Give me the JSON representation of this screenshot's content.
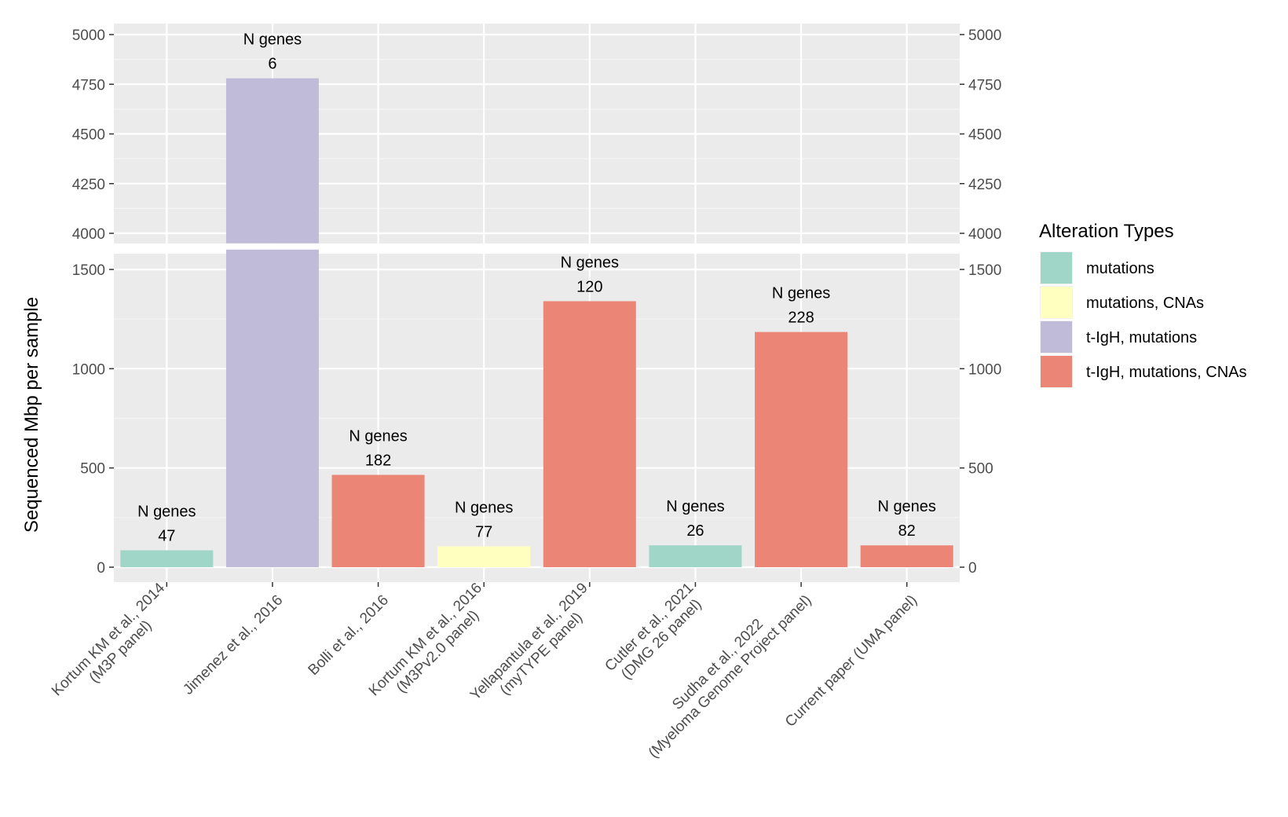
{
  "chart_data": {
    "type": "bar",
    "ylabel": "Sequenced Mbp per sample",
    "xlabel": "",
    "axis_break": {
      "lower_range": [
        0,
        1600
      ],
      "upper_range": [
        3950,
        5000
      ]
    },
    "yticks_lower": [
      "0",
      "500",
      "1000",
      "1500"
    ],
    "yticks_upper": [
      "4000",
      "4250",
      "4500",
      "4750",
      "5000"
    ],
    "categories": [
      [
        "Kortum KM et al., 2014",
        "(M3P panel)"
      ],
      [
        "Jimenez et al., 2016"
      ],
      [
        "Bolli et al., 2016"
      ],
      [
        "Kortum KM et al., 2016",
        "(M3Pv2.0 panel)"
      ],
      [
        "Yellapantula et al., 2019",
        "(myTYPE panel)"
      ],
      [
        "Cutler et al., 2021",
        "(DMG 26 panel)"
      ],
      [
        "Sudha et al., 2022",
        "(Myeloma Genome Project panel)"
      ],
      [
        "Current paper (UMA panel)"
      ]
    ],
    "values": [
      85,
      4780,
      465,
      105,
      1340,
      110,
      1185,
      110
    ],
    "alteration": [
      "mutations",
      "t-IgH, mutations",
      "t-IgH, mutations, CNAs",
      "mutations, CNAs",
      "t-IgH, mutations, CNAs",
      "mutations",
      "t-IgH, mutations, CNAs",
      "t-IgH, mutations, CNAs"
    ],
    "annotation_prefix": "N genes",
    "n_genes": [
      "47",
      "6",
      "182",
      "77",
      "120",
      "26",
      "228",
      "82"
    ],
    "legend": {
      "title": "Alteration Types",
      "position": "right",
      "items": [
        {
          "label": "mutations",
          "color": "#9fd6c8"
        },
        {
          "label": "mutations, CNAs",
          "color": "#ffffbf"
        },
        {
          "label": "t-IgH, mutations",
          "color": "#bfbbd9"
        },
        {
          "label": "t-IgH, mutations, CNAs",
          "color": "#eb8676"
        }
      ]
    },
    "grid": true,
    "panel_background": "#ebebeb"
  }
}
